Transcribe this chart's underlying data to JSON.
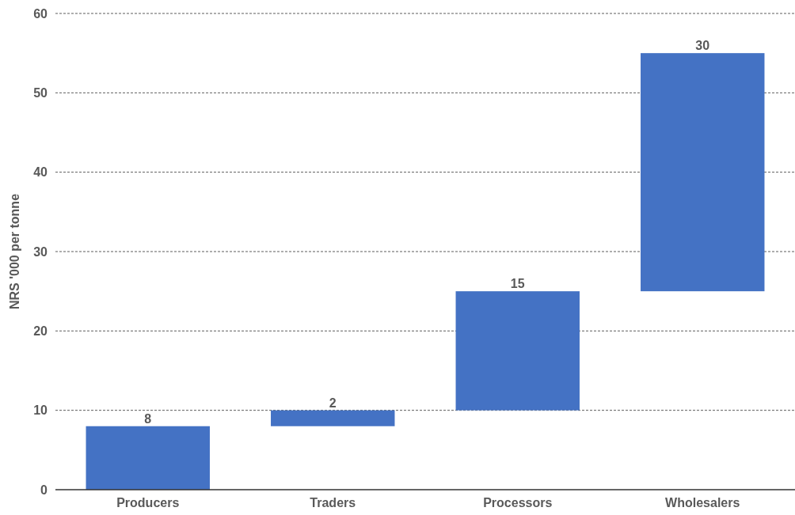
{
  "chart_data": {
    "type": "bar",
    "ylabel": "NRS '000 per tonne",
    "categories": [
      "Producers",
      "Traders",
      "Processors",
      "Wholesalers"
    ],
    "values": [
      8,
      2,
      15,
      30
    ],
    "base": [
      0,
      8,
      10,
      25
    ],
    "color": "#4472c4",
    "ylim": [
      0,
      60
    ],
    "yticks": [
      0,
      10,
      20,
      30,
      40,
      50,
      60
    ],
    "grid": "y",
    "data_labels": true
  }
}
